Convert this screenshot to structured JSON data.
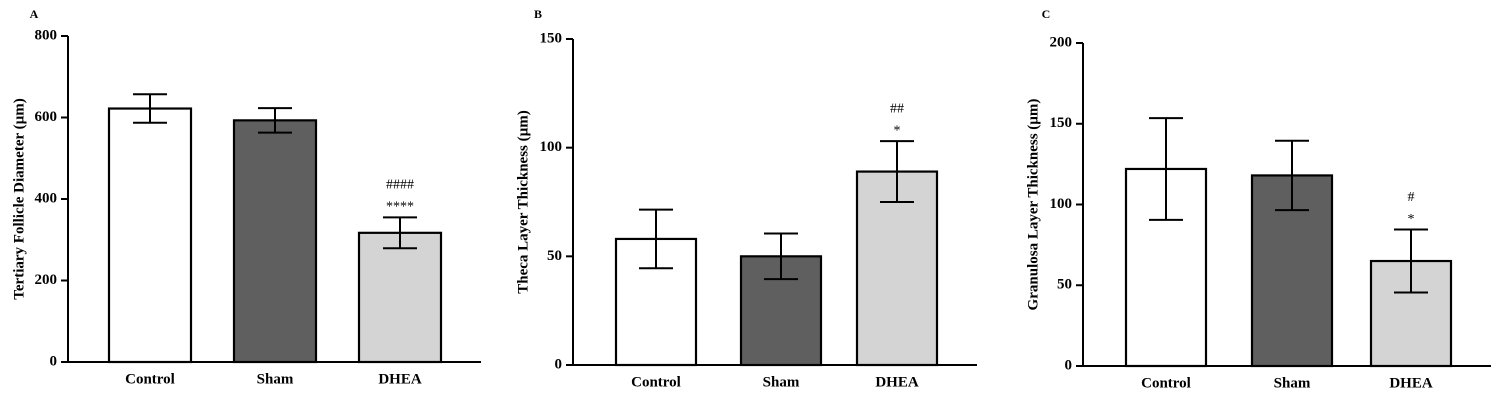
{
  "chart_data": [
    {
      "type": "bar",
      "panel": "A",
      "categories": [
        "Control",
        "Sham",
        "DHEA"
      ],
      "values": [
        622,
        593,
        317
      ],
      "errors": [
        35,
        30,
        38
      ],
      "annotations": [
        "",
        "",
        "####\n****"
      ],
      "ylabel": "Tertiary Follicle Diameter (µm)",
      "ylim": [
        0,
        800
      ],
      "yticks": [
        0,
        200,
        400,
        600,
        800
      ],
      "colors": [
        "#ffffff",
        "#5f5f5f",
        "#d4d4d4"
      ]
    },
    {
      "type": "bar",
      "panel": "B",
      "categories": [
        "Control",
        "Sham",
        "DHEA"
      ],
      "values": [
        58,
        50,
        89
      ],
      "errors": [
        13.5,
        10.5,
        14
      ],
      "annotations": [
        "",
        "",
        "##\n*"
      ],
      "ylabel": "Theca Layer Thickness (µm)",
      "ylim": [
        0,
        150
      ],
      "yticks": [
        0,
        50,
        100,
        150
      ],
      "colors": [
        "#ffffff",
        "#5f5f5f",
        "#d4d4d4"
      ]
    },
    {
      "type": "bar",
      "panel": "C",
      "categories": [
        "Control",
        "Sham",
        "DHEA"
      ],
      "values": [
        122,
        118,
        65
      ],
      "errors": [
        31.5,
        21.5,
        19.5
      ],
      "annotations": [
        "",
        "",
        "#\n*"
      ],
      "ylabel": "Granulosa Layer Thickness (µm)",
      "ylim": [
        0,
        200
      ],
      "yticks": [
        0,
        50,
        100,
        150,
        200
      ],
      "colors": [
        "#ffffff",
        "#5f5f5f",
        "#d4d4d4"
      ]
    }
  ]
}
